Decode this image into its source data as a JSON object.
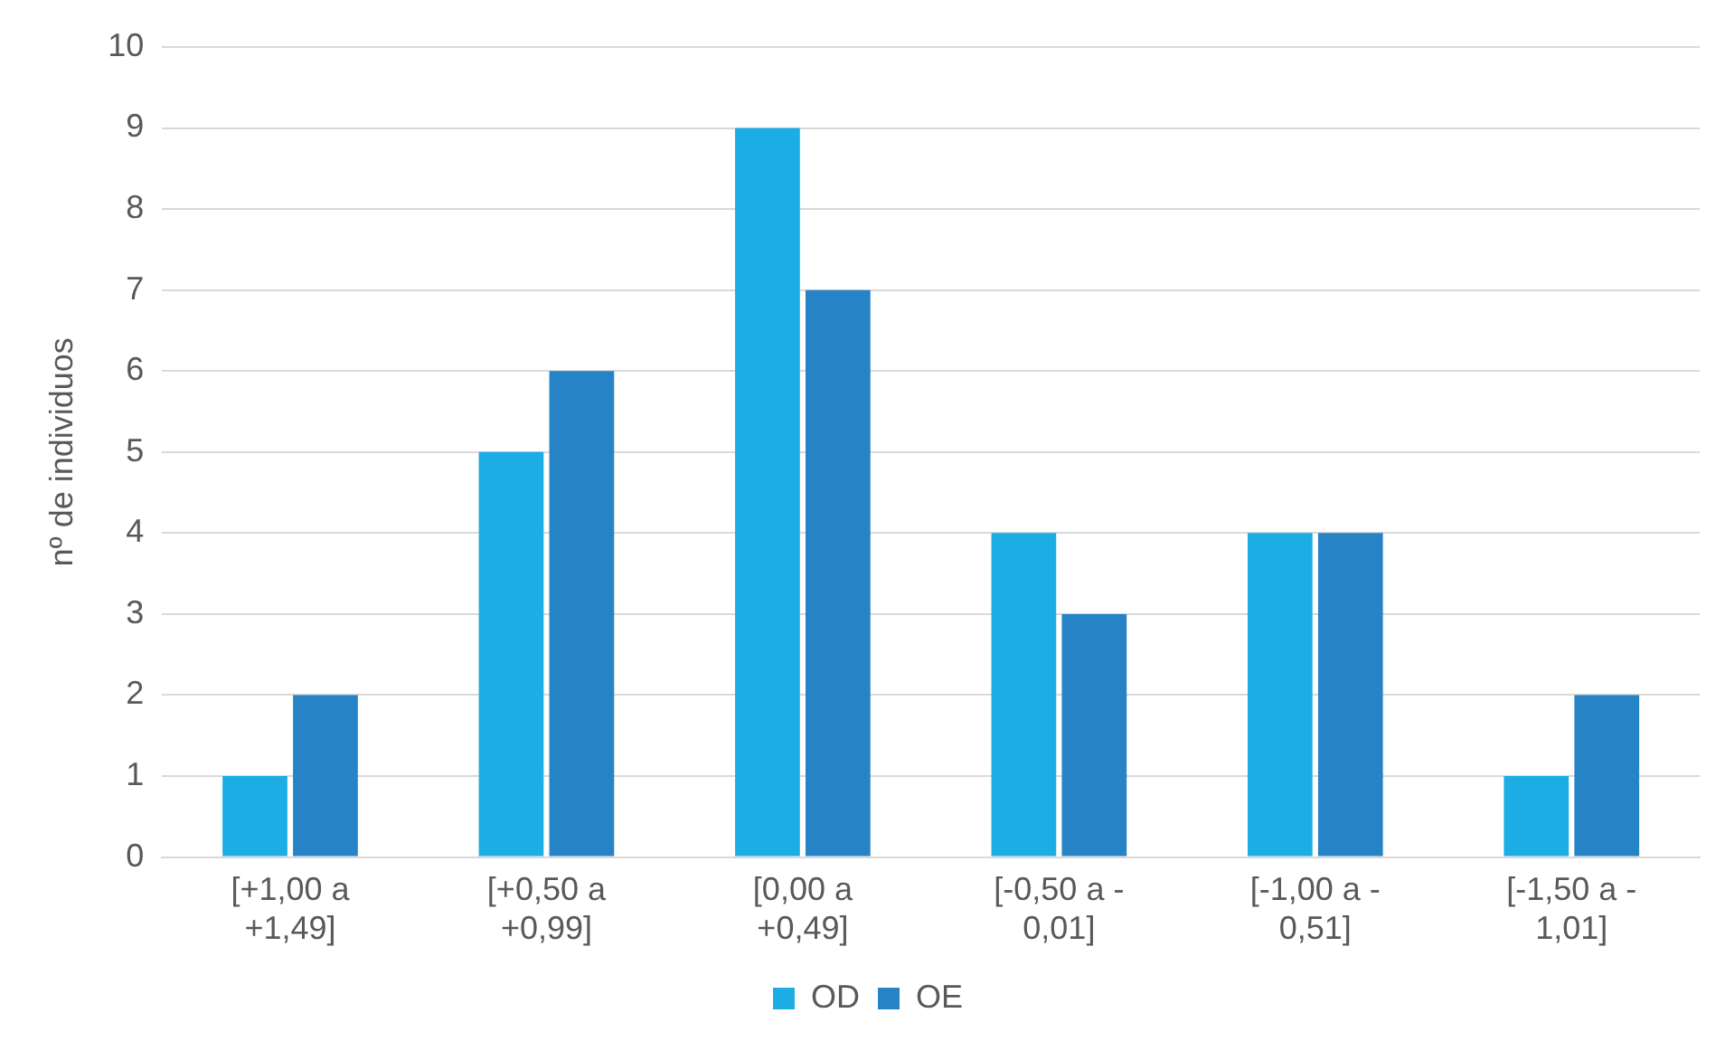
{
  "chart_data": {
    "type": "bar",
    "ylabel": "nº de individuos",
    "categories": [
      "[+1,00 a +1,49]",
      "[+0,50 a +0,99]",
      "[0,00 a +0,49]",
      "[-0,50 a -0,01]",
      "[-1,00 a -0,51]",
      "[-1,50 a -1,01]"
    ],
    "series": [
      {
        "name": "OD",
        "color": "#1cade4",
        "values": [
          1,
          5,
          9,
          4,
          4,
          1
        ]
      },
      {
        "name": "OE",
        "color": "#2683c6",
        "values": [
          2,
          6,
          7,
          3,
          4,
          2
        ]
      }
    ],
    "ylim": [
      0,
      10
    ],
    "yticks": [
      0,
      1,
      2,
      3,
      4,
      5,
      6,
      7,
      8,
      9,
      10
    ],
    "grid": "y",
    "legend": "bottom"
  }
}
